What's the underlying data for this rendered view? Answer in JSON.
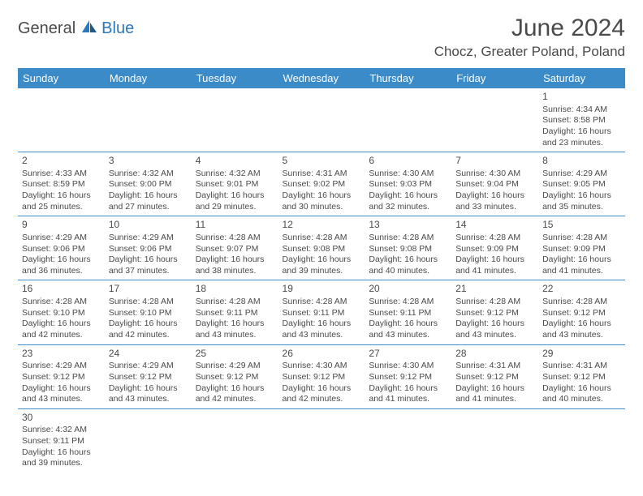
{
  "logo": {
    "part1": "General",
    "part2": "Blue"
  },
  "title": "June 2024",
  "location": "Chocz, Greater Poland, Poland",
  "colors": {
    "header_bg": "#3b8bc9",
    "header_text": "#ffffff",
    "border": "#3b8bc9",
    "text": "#4a4a4a",
    "logo_accent": "#2b77bb"
  },
  "weekdays": [
    "Sunday",
    "Monday",
    "Tuesday",
    "Wednesday",
    "Thursday",
    "Friday",
    "Saturday"
  ],
  "weeks": [
    [
      null,
      null,
      null,
      null,
      null,
      null,
      {
        "day": "1",
        "sunrise": "Sunrise: 4:34 AM",
        "sunset": "Sunset: 8:58 PM",
        "daylight1": "Daylight: 16 hours",
        "daylight2": "and 23 minutes."
      }
    ],
    [
      {
        "day": "2",
        "sunrise": "Sunrise: 4:33 AM",
        "sunset": "Sunset: 8:59 PM",
        "daylight1": "Daylight: 16 hours",
        "daylight2": "and 25 minutes."
      },
      {
        "day": "3",
        "sunrise": "Sunrise: 4:32 AM",
        "sunset": "Sunset: 9:00 PM",
        "daylight1": "Daylight: 16 hours",
        "daylight2": "and 27 minutes."
      },
      {
        "day": "4",
        "sunrise": "Sunrise: 4:32 AM",
        "sunset": "Sunset: 9:01 PM",
        "daylight1": "Daylight: 16 hours",
        "daylight2": "and 29 minutes."
      },
      {
        "day": "5",
        "sunrise": "Sunrise: 4:31 AM",
        "sunset": "Sunset: 9:02 PM",
        "daylight1": "Daylight: 16 hours",
        "daylight2": "and 30 minutes."
      },
      {
        "day": "6",
        "sunrise": "Sunrise: 4:30 AM",
        "sunset": "Sunset: 9:03 PM",
        "daylight1": "Daylight: 16 hours",
        "daylight2": "and 32 minutes."
      },
      {
        "day": "7",
        "sunrise": "Sunrise: 4:30 AM",
        "sunset": "Sunset: 9:04 PM",
        "daylight1": "Daylight: 16 hours",
        "daylight2": "and 33 minutes."
      },
      {
        "day": "8",
        "sunrise": "Sunrise: 4:29 AM",
        "sunset": "Sunset: 9:05 PM",
        "daylight1": "Daylight: 16 hours",
        "daylight2": "and 35 minutes."
      }
    ],
    [
      {
        "day": "9",
        "sunrise": "Sunrise: 4:29 AM",
        "sunset": "Sunset: 9:06 PM",
        "daylight1": "Daylight: 16 hours",
        "daylight2": "and 36 minutes."
      },
      {
        "day": "10",
        "sunrise": "Sunrise: 4:29 AM",
        "sunset": "Sunset: 9:06 PM",
        "daylight1": "Daylight: 16 hours",
        "daylight2": "and 37 minutes."
      },
      {
        "day": "11",
        "sunrise": "Sunrise: 4:28 AM",
        "sunset": "Sunset: 9:07 PM",
        "daylight1": "Daylight: 16 hours",
        "daylight2": "and 38 minutes."
      },
      {
        "day": "12",
        "sunrise": "Sunrise: 4:28 AM",
        "sunset": "Sunset: 9:08 PM",
        "daylight1": "Daylight: 16 hours",
        "daylight2": "and 39 minutes."
      },
      {
        "day": "13",
        "sunrise": "Sunrise: 4:28 AM",
        "sunset": "Sunset: 9:08 PM",
        "daylight1": "Daylight: 16 hours",
        "daylight2": "and 40 minutes."
      },
      {
        "day": "14",
        "sunrise": "Sunrise: 4:28 AM",
        "sunset": "Sunset: 9:09 PM",
        "daylight1": "Daylight: 16 hours",
        "daylight2": "and 41 minutes."
      },
      {
        "day": "15",
        "sunrise": "Sunrise: 4:28 AM",
        "sunset": "Sunset: 9:09 PM",
        "daylight1": "Daylight: 16 hours",
        "daylight2": "and 41 minutes."
      }
    ],
    [
      {
        "day": "16",
        "sunrise": "Sunrise: 4:28 AM",
        "sunset": "Sunset: 9:10 PM",
        "daylight1": "Daylight: 16 hours",
        "daylight2": "and 42 minutes."
      },
      {
        "day": "17",
        "sunrise": "Sunrise: 4:28 AM",
        "sunset": "Sunset: 9:10 PM",
        "daylight1": "Daylight: 16 hours",
        "daylight2": "and 42 minutes."
      },
      {
        "day": "18",
        "sunrise": "Sunrise: 4:28 AM",
        "sunset": "Sunset: 9:11 PM",
        "daylight1": "Daylight: 16 hours",
        "daylight2": "and 43 minutes."
      },
      {
        "day": "19",
        "sunrise": "Sunrise: 4:28 AM",
        "sunset": "Sunset: 9:11 PM",
        "daylight1": "Daylight: 16 hours",
        "daylight2": "and 43 minutes."
      },
      {
        "day": "20",
        "sunrise": "Sunrise: 4:28 AM",
        "sunset": "Sunset: 9:11 PM",
        "daylight1": "Daylight: 16 hours",
        "daylight2": "and 43 minutes."
      },
      {
        "day": "21",
        "sunrise": "Sunrise: 4:28 AM",
        "sunset": "Sunset: 9:12 PM",
        "daylight1": "Daylight: 16 hours",
        "daylight2": "and 43 minutes."
      },
      {
        "day": "22",
        "sunrise": "Sunrise: 4:28 AM",
        "sunset": "Sunset: 9:12 PM",
        "daylight1": "Daylight: 16 hours",
        "daylight2": "and 43 minutes."
      }
    ],
    [
      {
        "day": "23",
        "sunrise": "Sunrise: 4:29 AM",
        "sunset": "Sunset: 9:12 PM",
        "daylight1": "Daylight: 16 hours",
        "daylight2": "and 43 minutes."
      },
      {
        "day": "24",
        "sunrise": "Sunrise: 4:29 AM",
        "sunset": "Sunset: 9:12 PM",
        "daylight1": "Daylight: 16 hours",
        "daylight2": "and 43 minutes."
      },
      {
        "day": "25",
        "sunrise": "Sunrise: 4:29 AM",
        "sunset": "Sunset: 9:12 PM",
        "daylight1": "Daylight: 16 hours",
        "daylight2": "and 42 minutes."
      },
      {
        "day": "26",
        "sunrise": "Sunrise: 4:30 AM",
        "sunset": "Sunset: 9:12 PM",
        "daylight1": "Daylight: 16 hours",
        "daylight2": "and 42 minutes."
      },
      {
        "day": "27",
        "sunrise": "Sunrise: 4:30 AM",
        "sunset": "Sunset: 9:12 PM",
        "daylight1": "Daylight: 16 hours",
        "daylight2": "and 41 minutes."
      },
      {
        "day": "28",
        "sunrise": "Sunrise: 4:31 AM",
        "sunset": "Sunset: 9:12 PM",
        "daylight1": "Daylight: 16 hours",
        "daylight2": "and 41 minutes."
      },
      {
        "day": "29",
        "sunrise": "Sunrise: 4:31 AM",
        "sunset": "Sunset: 9:12 PM",
        "daylight1": "Daylight: 16 hours",
        "daylight2": "and 40 minutes."
      }
    ],
    [
      {
        "day": "30",
        "sunrise": "Sunrise: 4:32 AM",
        "sunset": "Sunset: 9:11 PM",
        "daylight1": "Daylight: 16 hours",
        "daylight2": "and 39 minutes."
      },
      null,
      null,
      null,
      null,
      null,
      null
    ]
  ]
}
